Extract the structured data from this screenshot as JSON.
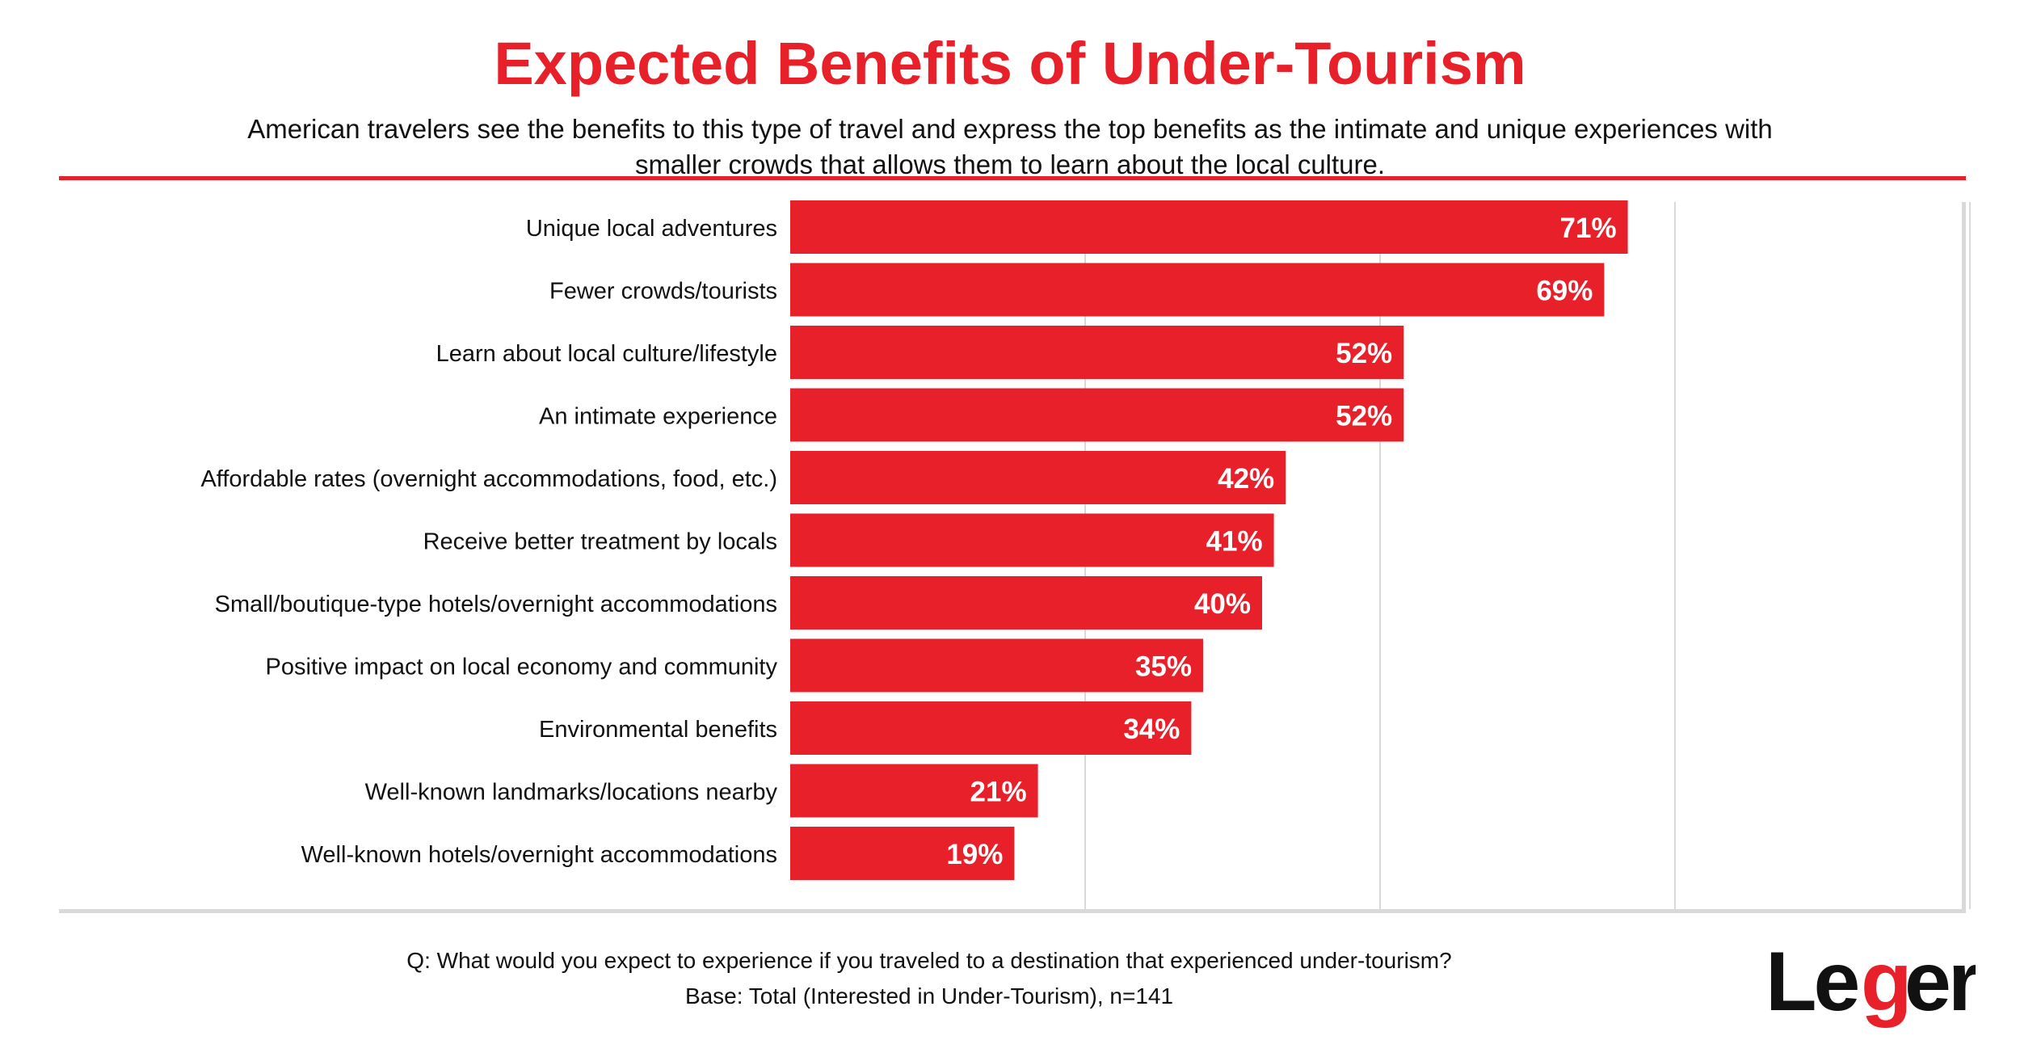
{
  "header": {
    "title": "Expected Benefits of Under-Tourism",
    "subtitle": "American travelers see the benefits to this type of travel and express the top benefits as the intimate and unique experiences with smaller crowds that allows them to learn about the local culture."
  },
  "footer": {
    "question": "Q: What would you expect to experience if you traveled to a destination that experienced under-tourism?",
    "base": "Base: Total (Interested in Under-Tourism), n=141",
    "logo_text": "Leger"
  },
  "colors": {
    "accent": "#e8202a",
    "text": "#111111",
    "grid": "#d9d9d9"
  },
  "chart_data": {
    "type": "bar",
    "orientation": "horizontal",
    "title": "Expected Benefits of Under-Tourism",
    "categories": [
      "Unique local adventures",
      "Fewer crowds/tourists",
      "Learn about local culture/lifestyle",
      "An intimate experience",
      "Affordable rates (overnight accommodations, food, etc.)",
      "Receive better treatment by locals",
      "Small/boutique-type hotels/overnight accommodations",
      "Positive impact on local economy and community",
      "Environmental benefits",
      "Well-known landmarks/locations nearby",
      "Well-known hotels/overnight accommodations"
    ],
    "values": [
      71,
      69,
      52,
      52,
      42,
      41,
      40,
      35,
      34,
      21,
      19
    ],
    "value_labels": [
      "71%",
      "69%",
      "52%",
      "52%",
      "42%",
      "41%",
      "40%",
      "35%",
      "34%",
      "21%",
      "19%"
    ],
    "xlim": [
      0,
      100
    ],
    "gridlines": [
      25,
      50,
      75,
      100
    ],
    "grid": true,
    "legend": "none"
  }
}
